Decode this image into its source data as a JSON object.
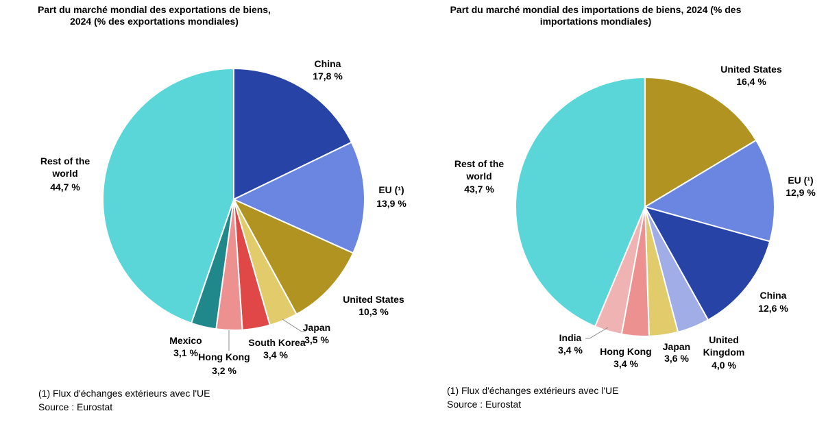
{
  "chart_data": [
    {
      "type": "pie",
      "title": "Part du marché mondial des exportations de biens, 2024 (% des exportations mondiales)",
      "categories": [
        "China",
        "EU (¹)",
        "United States",
        "Japan",
        "South Korea",
        "Hong Kong",
        "Mexico",
        "Rest of the world"
      ],
      "values": [
        17.8,
        13.9,
        10.3,
        3.5,
        3.4,
        3.2,
        3.1,
        44.7
      ],
      "value_labels": [
        "17,8 %",
        "13,9 %",
        "10,3 %",
        "3,5 %",
        "3,4 %",
        "3,2 %",
        "3,1 %",
        "44,7 %"
      ],
      "colors": [
        "#2843a6",
        "#6b86e0",
        "#b09320",
        "#e2cb6a",
        "#e04848",
        "#ec9090",
        "#20878a",
        "#5ad6d9"
      ],
      "footnote": "(1) Flux d'échanges extérieurs avec l'UE",
      "source": "Source : Eurostat"
    },
    {
      "type": "pie",
      "title": "Part du marché mondial des importations de biens, 2024 (% des importations mondiales)",
      "categories": [
        "United States",
        "EU (¹)",
        "China",
        "United Kingdom",
        "Japan",
        "Hong Kong",
        "India",
        "Rest of the world"
      ],
      "values": [
        16.4,
        12.9,
        12.6,
        4.0,
        3.6,
        3.4,
        3.4,
        43.7
      ],
      "value_labels": [
        "16,4 %",
        "12,9 %",
        "12,6 %",
        "4,0 %",
        "3,6 %",
        "3,4 %",
        "3,4 %",
        "43,7 %"
      ],
      "colors": [
        "#b09320",
        "#6b86e0",
        "#2843a6",
        "#a0ade6",
        "#e2cb6a",
        "#ec9090",
        "#f0b3b3",
        "#5ad6d9"
      ],
      "footnote": "(1) Flux d'échanges extérieurs avec l'UE",
      "source": "Source : Eurostat"
    }
  ]
}
